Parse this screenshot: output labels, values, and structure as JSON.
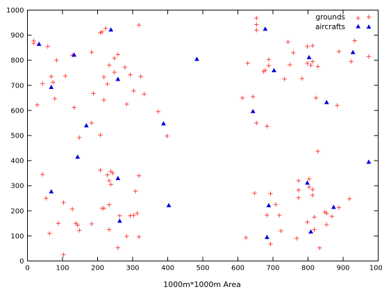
{
  "chart_data": {
    "type": "scatter",
    "xlabel": "1000m*1000m Area",
    "ylabel": "",
    "xlim": [
      0,
      1000
    ],
    "ylim": [
      0,
      1000
    ],
    "xticks": [
      0,
      100,
      200,
      300,
      400,
      500,
      600,
      700,
      800,
      900,
      1000
    ],
    "yticks": [
      0,
      100,
      200,
      300,
      400,
      500,
      600,
      700,
      800,
      900,
      1000
    ],
    "grid": false,
    "legend_position": "top-right",
    "series": [
      {
        "name": "grounds",
        "marker": "plus",
        "color": "#ff3b3b",
        "points": [
          [
            18,
            868
          ],
          [
            18,
            877
          ],
          [
            58,
            855
          ],
          [
            28,
            622
          ],
          [
            43,
            707
          ],
          [
            43,
            345
          ],
          [
            53,
            250
          ],
          [
            63,
            110
          ],
          [
            68,
            735
          ],
          [
            73,
            712
          ],
          [
            78,
            647
          ],
          [
            83,
            800
          ],
          [
            88,
            150
          ],
          [
            103,
            25
          ],
          [
            108,
            737
          ],
          [
            103,
            233
          ],
          [
            128,
            820
          ],
          [
            133,
            612
          ],
          [
            128,
            207
          ],
          [
            138,
            150
          ],
          [
            143,
            143
          ],
          [
            148,
            492
          ],
          [
            183,
            832
          ],
          [
            183,
            550
          ],
          [
            188,
            668
          ],
          [
            183,
            148
          ],
          [
            148,
            122
          ],
          [
            208,
            910
          ],
          [
            213,
            913
          ],
          [
            218,
            733
          ],
          [
            218,
            642
          ],
          [
            223,
            927
          ],
          [
            228,
            705
          ],
          [
            233,
            780
          ],
          [
            208,
            502
          ],
          [
            208,
            362
          ],
          [
            213,
            210
          ],
          [
            218,
            210
          ],
          [
            228,
            343
          ],
          [
            233,
            320
          ],
          [
            233,
            224
          ],
          [
            238,
            305
          ],
          [
            238,
            357
          ],
          [
            243,
            350
          ],
          [
            233,
            125
          ],
          [
            248,
            752
          ],
          [
            248,
            808
          ],
          [
            258,
            823
          ],
          [
            258,
            53
          ],
          [
            263,
            180
          ],
          [
            278,
            772
          ],
          [
            283,
            625
          ],
          [
            283,
            98
          ],
          [
            293,
            742
          ],
          [
            293,
            180
          ],
          [
            303,
            678
          ],
          [
            303,
            182
          ],
          [
            308,
            278
          ],
          [
            313,
            190
          ],
          [
            318,
            940
          ],
          [
            318,
            340
          ],
          [
            318,
            96
          ],
          [
            323,
            735
          ],
          [
            333,
            665
          ],
          [
            373,
            595
          ],
          [
            398,
            498
          ],
          [
            623,
            93
          ],
          [
            628,
            788
          ],
          [
            613,
            650
          ],
          [
            643,
            655
          ],
          [
            653,
            968
          ],
          [
            653,
            942
          ],
          [
            653,
            920
          ],
          [
            653,
            550
          ],
          [
            648,
            270
          ],
          [
            673,
            755
          ],
          [
            678,
            760
          ],
          [
            683,
            537
          ],
          [
            683,
            183
          ],
          [
            688,
            778
          ],
          [
            688,
            803
          ],
          [
            693,
            268
          ],
          [
            693,
            68
          ],
          [
            708,
            225
          ],
          [
            718,
            182
          ],
          [
            723,
            120
          ],
          [
            733,
            725
          ],
          [
            743,
            873
          ],
          [
            748,
            782
          ],
          [
            758,
            830
          ],
          [
            768,
            90
          ],
          [
            773,
            320
          ],
          [
            773,
            283
          ],
          [
            773,
            252
          ],
          [
            783,
            727
          ],
          [
            798,
            855
          ],
          [
            798,
            788
          ],
          [
            798,
            155
          ],
          [
            803,
            327
          ],
          [
            803,
            295
          ],
          [
            808,
            780
          ],
          [
            813,
            858
          ],
          [
            813,
            795
          ],
          [
            813,
            285
          ],
          [
            813,
            262
          ],
          [
            818,
            175
          ],
          [
            818,
            125
          ],
          [
            823,
            650
          ],
          [
            828,
            775
          ],
          [
            828,
            437
          ],
          [
            833,
            52
          ],
          [
            848,
            195
          ],
          [
            853,
            145
          ],
          [
            853,
            190
          ],
          [
            868,
            178
          ],
          [
            883,
            620
          ],
          [
            888,
            835
          ],
          [
            888,
            213
          ],
          [
            918,
            248
          ],
          [
            923,
            795
          ],
          [
            933,
            878
          ],
          [
            943,
            968
          ],
          [
            973,
            815
          ]
        ]
      },
      {
        "name": "aircrafts",
        "marker": "triangle",
        "color": "#0000dd",
        "points": [
          [
            33,
            865
          ],
          [
            68,
            693
          ],
          [
            68,
            277
          ],
          [
            133,
            822
          ],
          [
            143,
            415
          ],
          [
            168,
            540
          ],
          [
            238,
            922
          ],
          [
            258,
            725
          ],
          [
            258,
            330
          ],
          [
            263,
            160
          ],
          [
            388,
            548
          ],
          [
            403,
            222
          ],
          [
            483,
            805
          ],
          [
            643,
            597
          ],
          [
            678,
            925
          ],
          [
            683,
            95
          ],
          [
            688,
            222
          ],
          [
            703,
            760
          ],
          [
            798,
            312
          ],
          [
            803,
            812
          ],
          [
            808,
            117
          ],
          [
            853,
            633
          ],
          [
            873,
            215
          ],
          [
            928,
            832
          ],
          [
            943,
            935
          ],
          [
            973,
            395
          ]
        ]
      }
    ]
  }
}
